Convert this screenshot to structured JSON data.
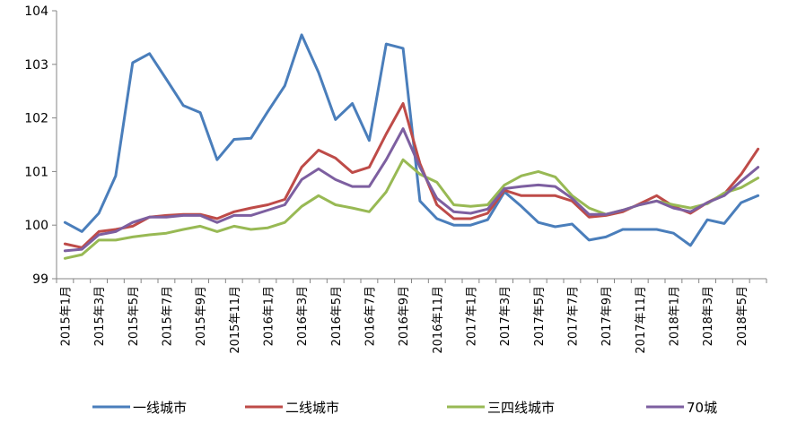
{
  "chart_data": {
    "type": "line",
    "title": "",
    "xlabel": "",
    "ylabel": "",
    "ylim": [
      99,
      104
    ],
    "yticks": [
      99,
      100,
      101,
      102,
      103,
      104
    ],
    "grid": false,
    "legend_position": "bottom",
    "x": [
      "2015年1月",
      "2015年2月",
      "2015年3月",
      "2015年4月",
      "2015年5月",
      "2015年6月",
      "2015年7月",
      "2015年8月",
      "2015年9月",
      "2015年10月",
      "2015年11月",
      "2015年12月",
      "2016年1月",
      "2016年2月",
      "2016年3月",
      "2016年4月",
      "2016年5月",
      "2016年6月",
      "2016年7月",
      "2016年8月",
      "2016年9月",
      "2016年10月",
      "2016年11月",
      "2016年12月",
      "2017年1月",
      "2017年2月",
      "2017年3月",
      "2017年4月",
      "2017年5月",
      "2017年6月",
      "2017年7月",
      "2017年8月",
      "2017年9月",
      "2017年10月",
      "2017年11月",
      "2017年12月",
      "2018年1月",
      "2018年2月",
      "2018年3月",
      "2018年4月",
      "2018年5月",
      "2018年6月"
    ],
    "x_tick_labels": [
      "2015年1月",
      "2015年3月",
      "2015年5月",
      "2015年7月",
      "2015年9月",
      "2015年11月",
      "2016年1月",
      "2016年3月",
      "2016年5月",
      "2016年7月",
      "2016年9月",
      "2016年11月",
      "2017年1月",
      "2017年3月",
      "2017年5月",
      "2017年7月",
      "2017年9月",
      "2017年11月",
      "2018年1月",
      "2018年3月",
      "2018年5月"
    ],
    "series": [
      {
        "name": "一线城市",
        "color": "#4a7ebb",
        "values": [
          100.05,
          99.88,
          100.22,
          100.92,
          103.03,
          103.2,
          102.72,
          102.23,
          102.1,
          101.22,
          101.6,
          101.62,
          102.12,
          102.6,
          103.55,
          102.85,
          101.97,
          102.27,
          101.58,
          103.38,
          103.3,
          100.45,
          100.12,
          100.0,
          100.0,
          100.1,
          100.62,
          100.35,
          100.05,
          99.97,
          100.02,
          99.72,
          99.78,
          99.92,
          99.92,
          99.92,
          99.85,
          99.62,
          100.1,
          100.03,
          100.42,
          100.55
        ]
      },
      {
        "name": "二线城市",
        "color": "#be4b48",
        "values": [
          99.65,
          99.58,
          99.88,
          99.92,
          99.98,
          100.15,
          100.18,
          100.2,
          100.2,
          100.12,
          100.25,
          100.32,
          100.38,
          100.48,
          101.08,
          101.4,
          101.25,
          100.98,
          101.08,
          101.7,
          102.27,
          101.15,
          100.38,
          100.12,
          100.12,
          100.22,
          100.65,
          100.55,
          100.55,
          100.55,
          100.45,
          100.15,
          100.18,
          100.25,
          100.4,
          100.55,
          100.35,
          100.22,
          100.42,
          100.58,
          100.95,
          101.42
        ]
      },
      {
        "name": "三四线城市",
        "color": "#98b954",
        "values": [
          99.38,
          99.45,
          99.72,
          99.72,
          99.78,
          99.82,
          99.85,
          99.92,
          99.98,
          99.88,
          99.98,
          99.92,
          99.95,
          100.05,
          100.35,
          100.55,
          100.38,
          100.32,
          100.25,
          100.62,
          101.22,
          100.95,
          100.8,
          100.38,
          100.35,
          100.38,
          100.75,
          100.92,
          101.0,
          100.9,
          100.55,
          100.32,
          100.2,
          100.28,
          100.38,
          100.45,
          100.38,
          100.32,
          100.4,
          100.6,
          100.7,
          100.88
        ]
      },
      {
        "name": "70城",
        "color": "#7d5fa0",
        "values": [
          99.52,
          99.55,
          99.82,
          99.88,
          100.05,
          100.15,
          100.15,
          100.18,
          100.18,
          100.05,
          100.18,
          100.18,
          100.28,
          100.38,
          100.85,
          101.05,
          100.85,
          100.72,
          100.72,
          101.22,
          101.8,
          101.08,
          100.5,
          100.25,
          100.22,
          100.3,
          100.68,
          100.72,
          100.75,
          100.72,
          100.5,
          100.2,
          100.2,
          100.28,
          100.38,
          100.45,
          100.32,
          100.25,
          100.42,
          100.55,
          100.82,
          101.08
        ]
      }
    ]
  }
}
